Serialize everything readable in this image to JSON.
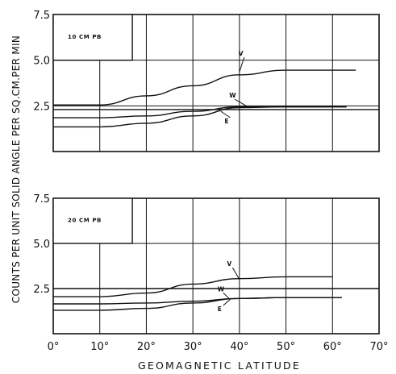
{
  "figure": {
    "ylabel": "COUNTS PER UNIT SOLID ANGLE PER SQ.CM.PER MIN",
    "xlabel": "GEOMAGNETIC LATITUDE",
    "x_tick_labels": [
      "0°",
      "10°",
      "20°",
      "30°",
      "40°",
      "50°",
      "60°",
      "70°"
    ]
  },
  "chart_data": [
    {
      "type": "line",
      "panel_label": "10 CM PB",
      "xlim": [
        0,
        70
      ],
      "ylim": [
        0,
        7.5
      ],
      "y_tick_labels": [
        "2.5",
        "5.0",
        "7.5"
      ],
      "grid": true,
      "series": [
        {
          "name": "V",
          "x": [
            0,
            10,
            20,
            30,
            40,
            50,
            65
          ],
          "y": [
            2.55,
            2.55,
            3.05,
            3.6,
            4.2,
            4.45,
            4.45
          ]
        },
        {
          "name": "W",
          "x": [
            0,
            10,
            20,
            30,
            40,
            50,
            63
          ],
          "y": [
            1.85,
            1.85,
            1.95,
            2.2,
            2.45,
            2.45,
            2.45
          ]
        },
        {
          "name": "E",
          "x": [
            0,
            10,
            20,
            30,
            40,
            50,
            63
          ],
          "y": [
            1.35,
            1.35,
            1.55,
            1.95,
            2.4,
            2.45,
            2.45
          ]
        },
        {
          "name": "",
          "x": [
            0,
            70
          ],
          "y": [
            2.3,
            2.3
          ]
        }
      ]
    },
    {
      "type": "line",
      "panel_label": "20 CM PB",
      "xlim": [
        0,
        70
      ],
      "ylim": [
        0,
        7.5
      ],
      "y_tick_labels": [
        "2.5",
        "5.0",
        "7.5"
      ],
      "grid": true,
      "series": [
        {
          "name": "V",
          "x": [
            0,
            10,
            20,
            30,
            40,
            50,
            60
          ],
          "y": [
            2.05,
            2.05,
            2.25,
            2.75,
            3.05,
            3.15,
            3.15
          ]
        },
        {
          "name": "W",
          "x": [
            0,
            10,
            20,
            30,
            40,
            50,
            62
          ],
          "y": [
            1.65,
            1.65,
            1.7,
            1.8,
            1.95,
            2.0,
            2.0
          ]
        },
        {
          "name": "E",
          "x": [
            0,
            10,
            20,
            30,
            40,
            50,
            62
          ],
          "y": [
            1.3,
            1.3,
            1.4,
            1.7,
            1.95,
            2.0,
            2.0
          ]
        },
        {
          "name": "",
          "x": [
            0,
            70
          ],
          "y": [
            2.5,
            2.5
          ]
        }
      ]
    }
  ]
}
